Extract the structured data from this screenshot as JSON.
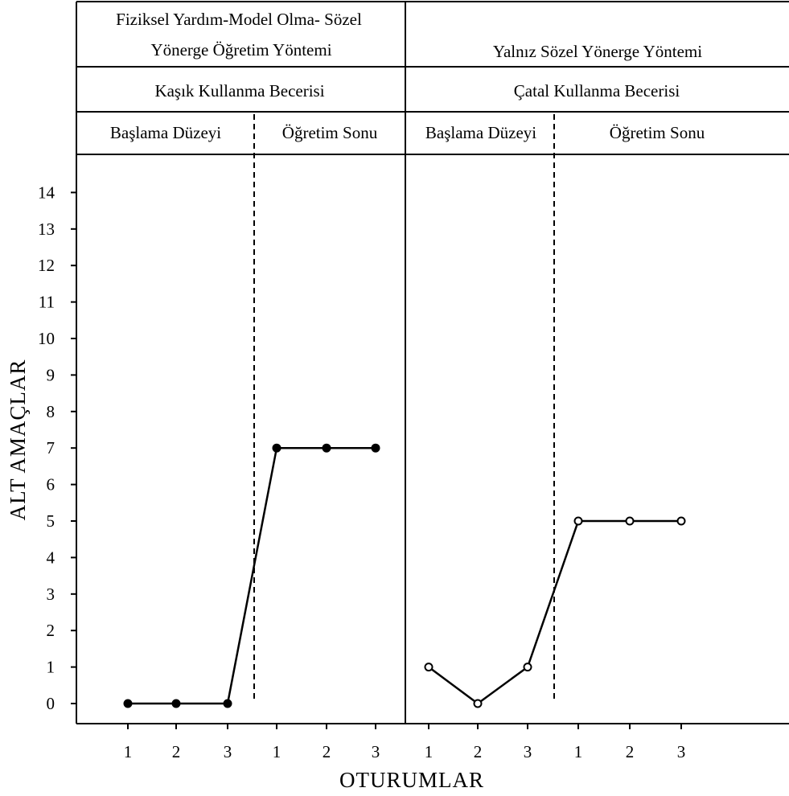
{
  "chart_data": {
    "type": "line",
    "ylabel": "ALT AMAÇLAR",
    "xlabel": "OTURUMLAR",
    "ylim": [
      0,
      14
    ],
    "yticks": [
      "0",
      "1",
      "2",
      "3",
      "4",
      "5",
      "6",
      "7",
      "8",
      "9",
      "10",
      "11",
      "12",
      "13",
      "14"
    ],
    "grid": false,
    "legend": "none",
    "panels": [
      {
        "method_title": [
          "Fiziksel Yardım-Model Olma- Sözel",
          "Yönerge Öğretim Yöntemi"
        ],
        "skill": "Kaşık Kullanma Becerisi",
        "phases": [
          {
            "name": "Başlama Düzeyi",
            "x": [
              "1",
              "2",
              "3"
            ],
            "values": [
              0,
              0,
              0
            ]
          },
          {
            "name": "Öğretim Sonu",
            "x": [
              "1",
              "2",
              "3"
            ],
            "values": [
              7,
              7,
              7
            ]
          }
        ],
        "marker": "filled-circle"
      },
      {
        "method_title": [
          "Yalnız Sözel Yönerge Yöntemi"
        ],
        "skill": "Çatal Kullanma Becerisi",
        "phases": [
          {
            "name": "Başlama Düzeyi",
            "x": [
              "1",
              "2",
              "3"
            ],
            "values": [
              1,
              0,
              1
            ]
          },
          {
            "name": "Öğretim Sonu",
            "x": [
              "1",
              "2",
              "3"
            ],
            "values": [
              5,
              5,
              5
            ]
          }
        ],
        "marker": "open-circle"
      }
    ]
  }
}
